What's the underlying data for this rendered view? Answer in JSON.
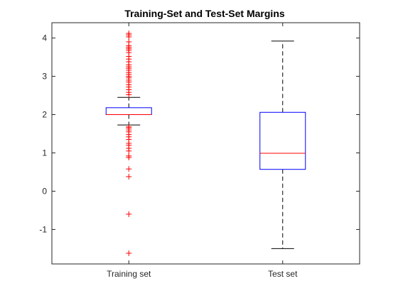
{
  "chart_data": {
    "type": "box",
    "title": "Training-Set and Test-Set Margins",
    "xlabel": "",
    "ylabel": "",
    "categories": [
      "Training set",
      "Test set"
    ],
    "ylim": [
      -1.9,
      4.4
    ],
    "yticks": [
      -1,
      0,
      1,
      2,
      3,
      4
    ],
    "grid": false,
    "boxes": [
      {
        "category": "Training set",
        "q1": 2.0,
        "median": 2.0,
        "q3": 2.18,
        "whisker_low": 1.73,
        "whisker_high": 2.45,
        "outliers": [
          4.12,
          4.08,
          4.03,
          3.9,
          3.8,
          3.76,
          3.72,
          3.68,
          3.62,
          3.52,
          3.45,
          3.38,
          3.3,
          3.25,
          3.21,
          3.16,
          3.1,
          3.05,
          3.0,
          2.96,
          2.9,
          2.85,
          2.78,
          2.72,
          2.65,
          2.58,
          2.52,
          1.68,
          1.65,
          1.6,
          1.55,
          1.48,
          1.42,
          1.35,
          1.25,
          1.2,
          1.12,
          1.05,
          0.92,
          0.88,
          0.58,
          0.38,
          -0.6,
          -1.62
        ]
      },
      {
        "category": "Test set",
        "q1": 0.57,
        "median": 0.99,
        "q3": 2.06,
        "whisker_low": -1.5,
        "whisker_high": 3.92,
        "outliers": []
      }
    ],
    "colors": {
      "box": "#0000ff",
      "median": "#ff0000",
      "outlier": "#ff0000",
      "whisker": "#000000"
    }
  }
}
